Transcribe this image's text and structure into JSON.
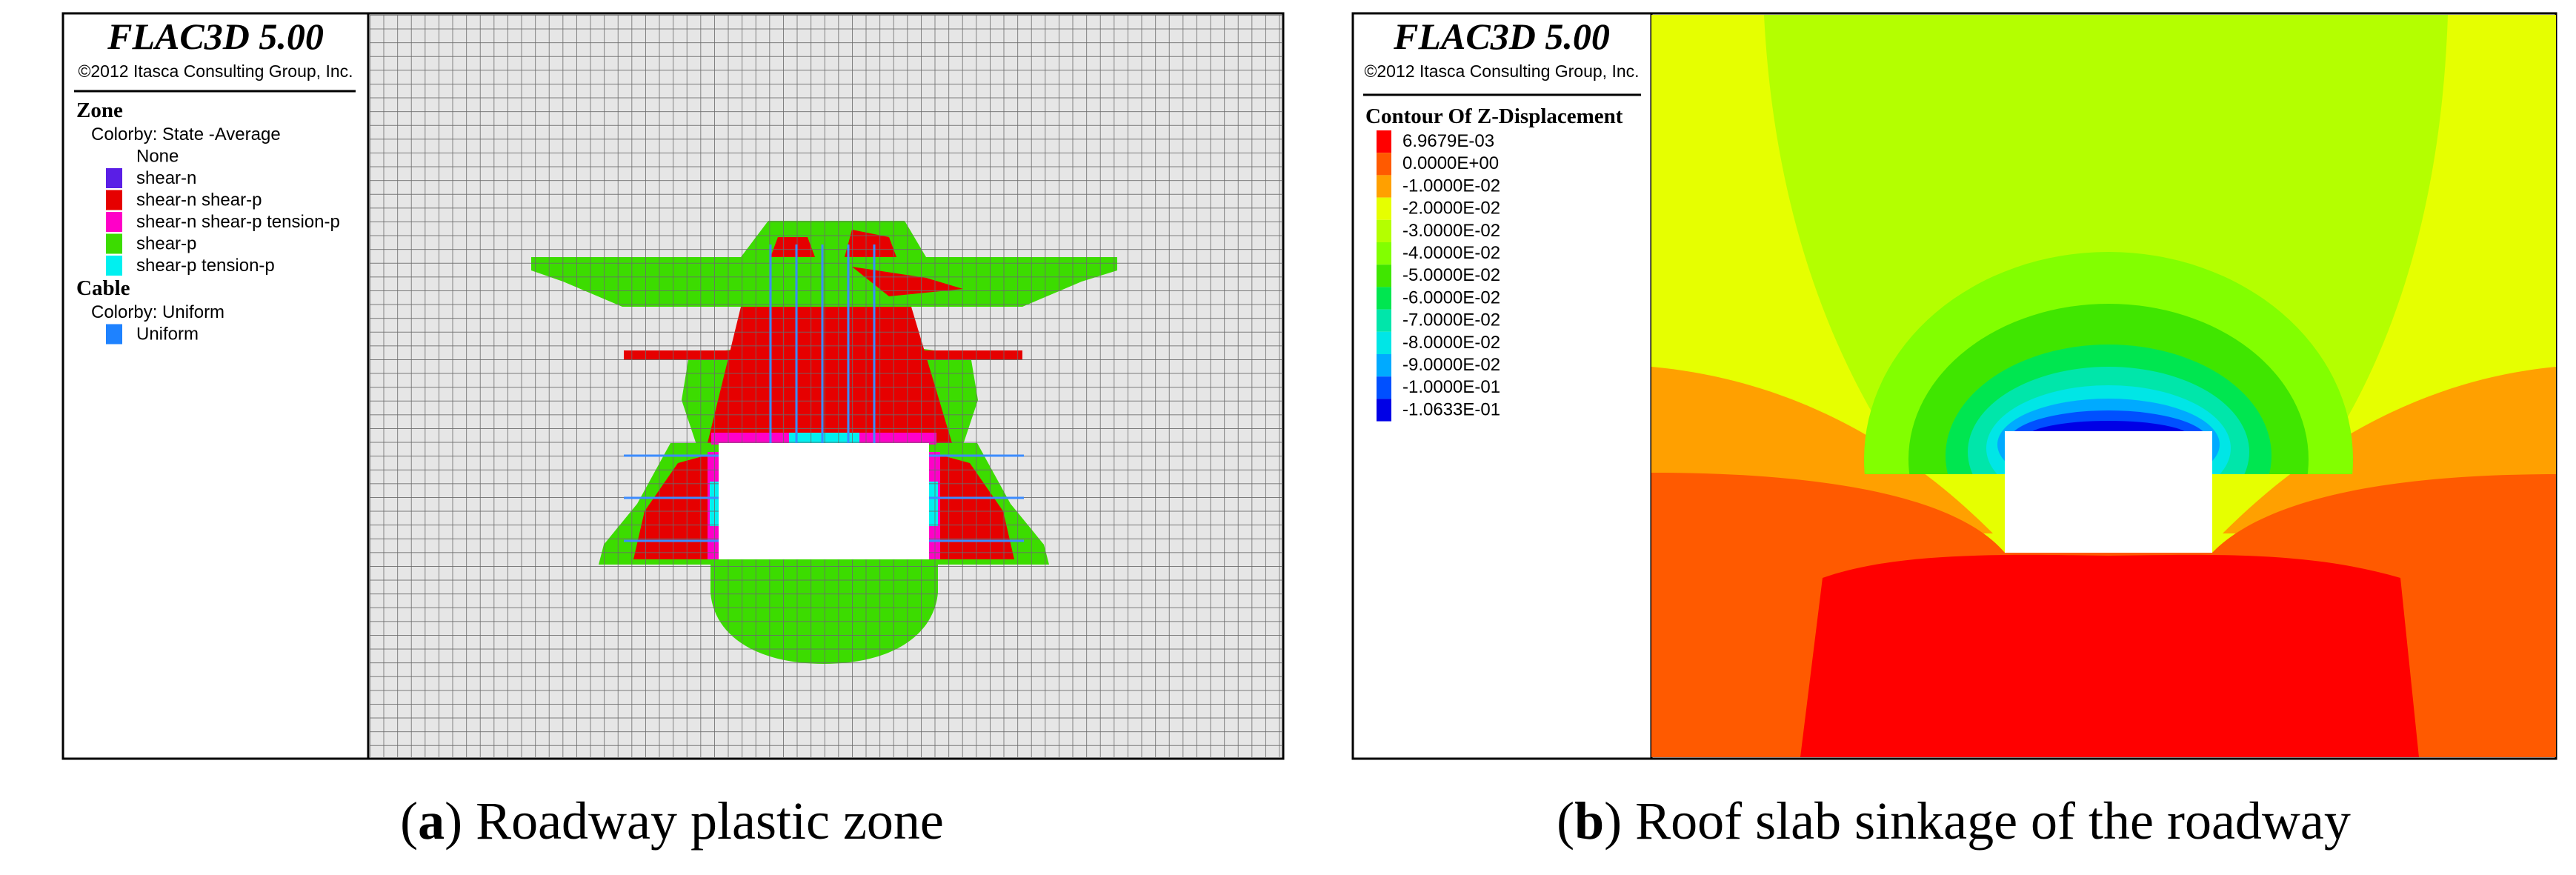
{
  "panels": [
    {
      "header": {
        "title": "FLAC3D 5.00",
        "copyright": "©2012 Itasca Consulting Group, Inc."
      },
      "legend": {
        "groups": [
          {
            "title": "Zone",
            "subtitle": "Colorby: State  -Average",
            "items": [
              {
                "label": "None"
              },
              {
                "label": "shear-n",
                "color": "#5a1ee6"
              },
              {
                "label": "shear-n shear-p",
                "color": "#e60000"
              },
              {
                "label": "shear-n shear-p tension-p",
                "color": "#ff00c8"
              },
              {
                "label": "shear-p",
                "color": "#3cdc00"
              },
              {
                "label": "shear-p tension-p",
                "color": "#00f0f0"
              }
            ]
          },
          {
            "title": "Cable",
            "subtitle": "Colorby: Uniform",
            "items": [
              {
                "label": "Uniform",
                "color": "#1e82ff"
              }
            ]
          }
        ]
      },
      "caption": {
        "open": "(",
        "label": "a",
        "close": ")",
        "text": " Roadway plastic zone"
      }
    },
    {
      "header": {
        "title": "FLAC3D 5.00",
        "copyright": "©2012 Itasca Consulting Group, Inc."
      },
      "legend": {
        "title": "Contour Of Z-Displacement",
        "items": [
          {
            "label": "6.9679E-03",
            "color": "#ff0000"
          },
          {
            "label": "0.0000E+00",
            "color": "#ff5a00"
          },
          {
            "label": "-1.0000E-02",
            "color": "#ffa000"
          },
          {
            "label": "-2.0000E-02",
            "color": "#e6ff00"
          },
          {
            "label": "-3.0000E-02",
            "color": "#b4ff00"
          },
          {
            "label": "-4.0000E-02",
            "color": "#82ff00"
          },
          {
            "label": "-5.0000E-02",
            "color": "#40e600"
          },
          {
            "label": "-6.0000E-02",
            "color": "#00e650"
          },
          {
            "label": "-7.0000E-02",
            "color": "#00e6aa"
          },
          {
            "label": "-8.0000E-02",
            "color": "#00e6e6"
          },
          {
            "label": "-9.0000E-02",
            "color": "#00aaff"
          },
          {
            "label": "-1.0000E-01",
            "color": "#0050ff"
          },
          {
            "label": "-1.0633E-01",
            "color": "#0000e6"
          }
        ]
      },
      "caption": {
        "open": "(",
        "label": "b",
        "close": ")",
        "text": " Roof slab sinkage of the roadway"
      }
    }
  ]
}
